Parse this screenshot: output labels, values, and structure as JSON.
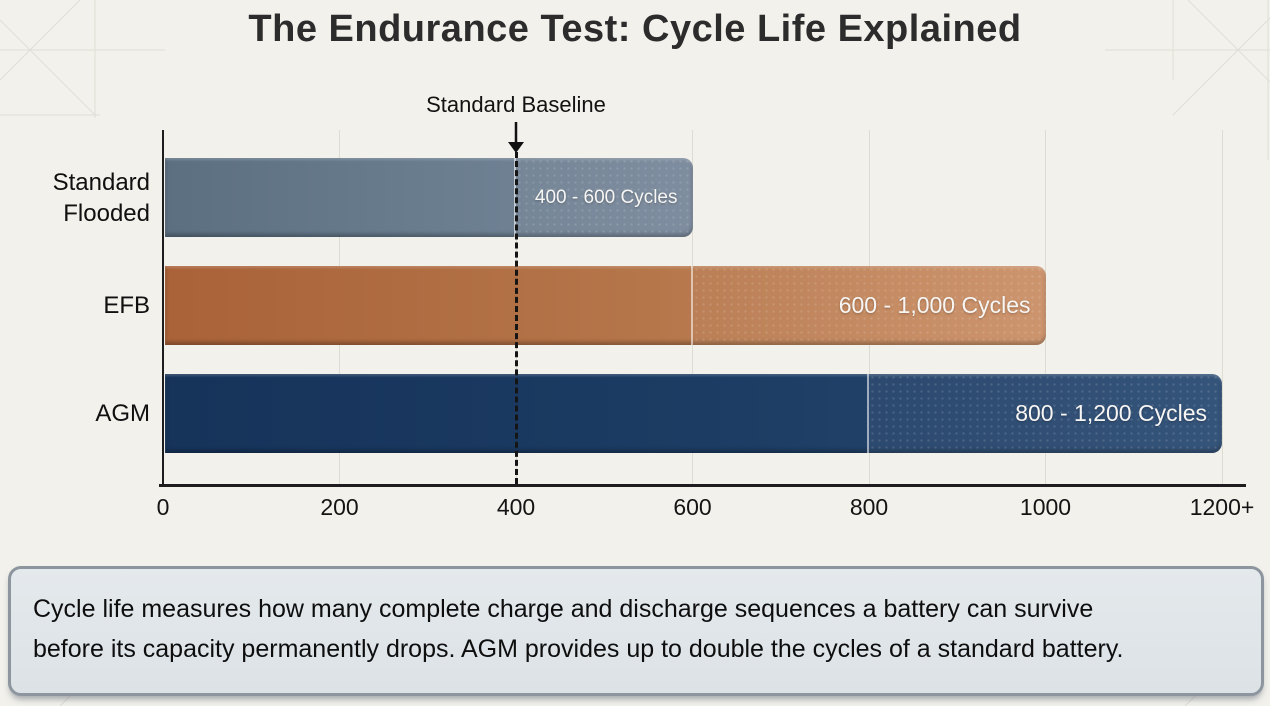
{
  "title": "The Endurance Test: Cycle Life Explained",
  "chart_data": {
    "type": "bar",
    "orientation": "horizontal",
    "title": "The Endurance Test: Cycle Life Explained",
    "categories": [
      "Standard Flooded",
      "EFB",
      "AGM"
    ],
    "series": [
      {
        "name": "Standard Flooded",
        "range": [
          400,
          600
        ],
        "bar_label": "400 - 600 Cycles",
        "color_dark": "#5c6f81",
        "color_mid": "#6b7e90",
        "color_light": "#78879a"
      },
      {
        "name": "EFB",
        "range": [
          600,
          1000
        ],
        "bar_label": "600 - 1,000 Cycles",
        "color_dark": "#aa6238",
        "color_mid": "#b5764a",
        "color_light": "#cb9067"
      },
      {
        "name": "AGM",
        "range": [
          800,
          1200
        ],
        "bar_label": "800 - 1,200 Cycles",
        "color_dark": "#16335a",
        "color_mid": "#1d3d64",
        "color_light": "#2b4b73"
      }
    ],
    "xticks": [
      {
        "value": 0,
        "label": "0"
      },
      {
        "value": 200,
        "label": "200"
      },
      {
        "value": 400,
        "label": "400"
      },
      {
        "value": 600,
        "label": "600"
      },
      {
        "value": 800,
        "label": "800"
      },
      {
        "value": 1000,
        "label": "1000"
      },
      {
        "value": 1200,
        "label": "1200+"
      }
    ],
    "xlim": [
      0,
      1200
    ],
    "grid": "vertical",
    "legend": false,
    "baseline": {
      "value": 400,
      "label": "Standard Baseline"
    }
  },
  "footer": {
    "lines": [
      "Cycle life measures how many complete charge and discharge sequences a battery can survive",
      "before its capacity permanently drops. AGM provides up to double the cycles of a standard battery."
    ]
  }
}
